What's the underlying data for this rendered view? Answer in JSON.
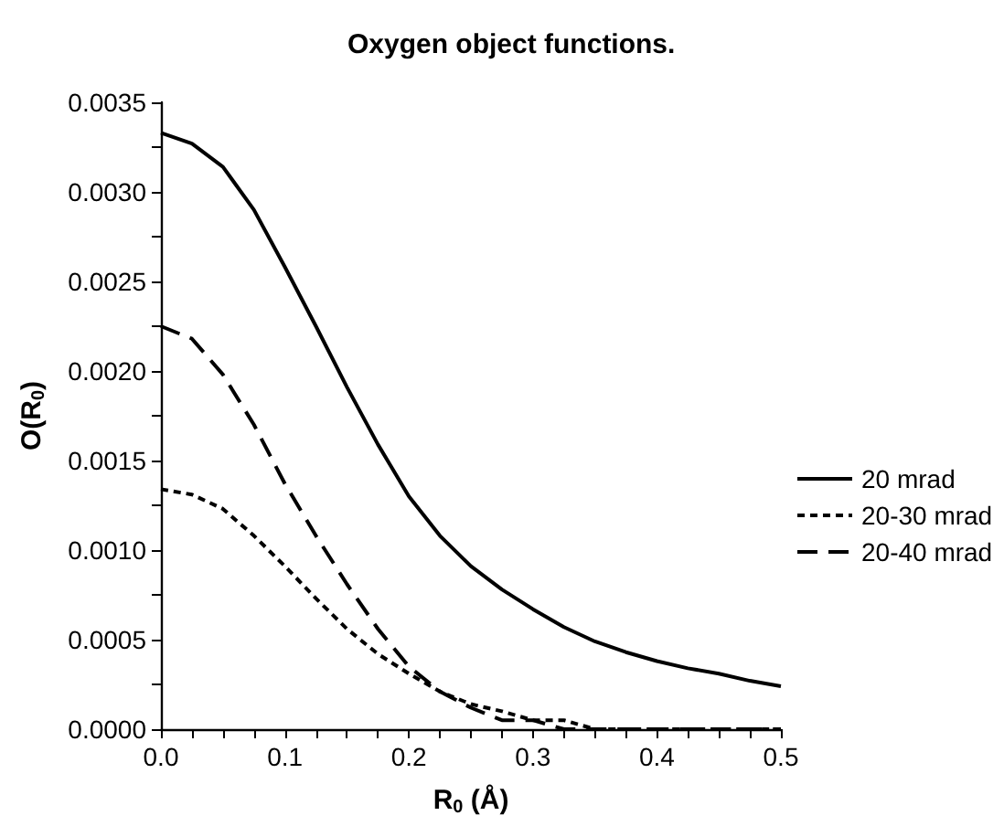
{
  "chart_data": {
    "type": "line",
    "title": "Oxygen object functions.",
    "xlabel": "R$_{0}$ (Å)",
    "ylabel": "O(R$_{0}$)",
    "x": [
      0,
      0.025,
      0.05,
      0.075,
      0.1,
      0.125,
      0.15,
      0.175,
      0.2,
      0.225,
      0.25,
      0.275,
      0.3,
      0.325,
      0.35,
      0.375,
      0.4,
      0.425,
      0.45,
      0.475,
      0.5
    ],
    "series": [
      {
        "name": "20 mrad",
        "color": "#000000",
        "line_style": "solid",
        "values": [
          0.00333,
          0.00327,
          0.00314,
          0.0029,
          0.00258,
          0.00225,
          0.00191,
          0.00159,
          0.0013,
          0.00108,
          0.00091,
          0.00078,
          0.00067,
          0.00057,
          0.00049,
          0.00043,
          0.00038,
          0.00034,
          0.00031,
          0.00027,
          0.00024
        ]
      },
      {
        "name": "20-30 mrad",
        "color": "#000000",
        "line_style": "dotted",
        "values": [
          0.00134,
          0.00131,
          0.00123,
          0.00108,
          0.00091,
          0.00073,
          0.00056,
          0.00042,
          0.00031,
          0.00021,
          0.00014,
          0.0001,
          5e-05,
          5e-05,
          0,
          0,
          0,
          0,
          0,
          0,
          0
        ]
      },
      {
        "name": "20-40 mrad",
        "color": "#000000",
        "line_style": "dashed",
        "values": [
          0.00225,
          0.00218,
          0.00198,
          0.0017,
          0.00137,
          0.00108,
          0.00081,
          0.00056,
          0.00035,
          0.00021,
          0.00012,
          5e-05,
          5e-05,
          0,
          0,
          0,
          0,
          0,
          0,
          0,
          0
        ]
      }
    ],
    "xlim": [
      0,
      0.5
    ],
    "xticks": [
      {
        "value": 0,
        "label": "0.0"
      },
      {
        "value": 0.025,
        "label": null
      },
      {
        "value": 0.05,
        "label": null
      },
      {
        "value": 0.075,
        "label": null
      },
      {
        "value": 0.1,
        "label": "0.1"
      },
      {
        "value": 0.125,
        "label": null
      },
      {
        "value": 0.15,
        "label": null
      },
      {
        "value": 0.175,
        "label": null
      },
      {
        "value": 0.2,
        "label": "0.2"
      },
      {
        "value": 0.225,
        "label": null
      },
      {
        "value": 0.25,
        "label": null
      },
      {
        "value": 0.275,
        "label": null
      },
      {
        "value": 0.3,
        "label": "0.3"
      },
      {
        "value": 0.325,
        "label": null
      },
      {
        "value": 0.35,
        "label": null
      },
      {
        "value": 0.375,
        "label": null
      },
      {
        "value": 0.4,
        "label": "0.4"
      },
      {
        "value": 0.425,
        "label": null
      },
      {
        "value": 0.45,
        "label": null
      },
      {
        "value": 0.475,
        "label": null
      },
      {
        "value": 0.5,
        "label": "0.5"
      }
    ],
    "ylim": [
      0,
      0.0035
    ],
    "yticks": [
      {
        "value": 0,
        "label": "0.0000"
      },
      {
        "value": 0.00025,
        "label": null
      },
      {
        "value": 0.0005,
        "label": "0.0005"
      },
      {
        "value": 0.00075,
        "label": null
      },
      {
        "value": 0.001,
        "label": "0.0010"
      },
      {
        "value": 0.00125,
        "label": null
      },
      {
        "value": 0.0015,
        "label": "0.0015"
      },
      {
        "value": 0.00175,
        "label": null
      },
      {
        "value": 0.002,
        "label": "0.0020"
      },
      {
        "value": 0.00225,
        "label": null
      },
      {
        "value": 0.0025,
        "label": "0.0025"
      },
      {
        "value": 0.00275,
        "label": null
      },
      {
        "value": 0.003,
        "label": "0.0030"
      },
      {
        "value": 0.00325,
        "label": null
      },
      {
        "value": 0.0035,
        "label": "0.0035"
      }
    ],
    "grid": false,
    "legend": "right",
    "marker": "none"
  }
}
